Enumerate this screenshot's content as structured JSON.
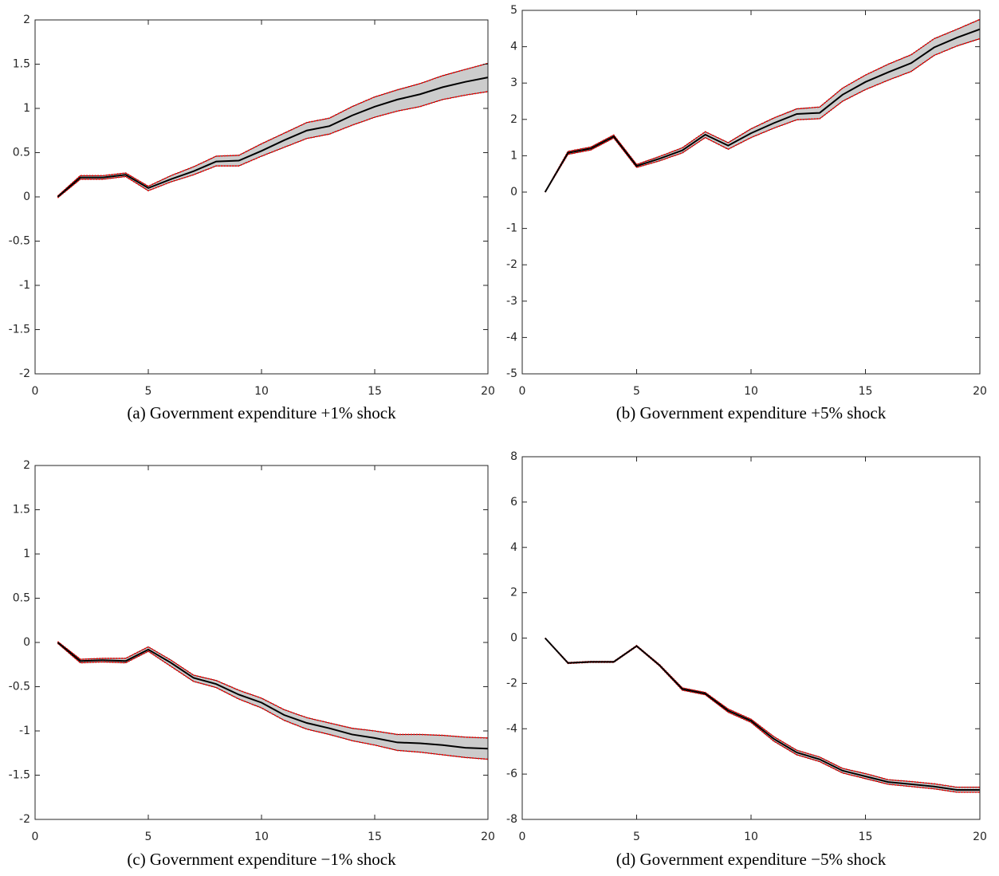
{
  "chart_data": [
    {
      "type": "line",
      "caption": "(a) Government expenditure +1% shock",
      "x": [
        1,
        2,
        3,
        4,
        5,
        6,
        7,
        8,
        9,
        10,
        11,
        12,
        13,
        14,
        15,
        16,
        17,
        18,
        19,
        20
      ],
      "values": [
        0,
        0.22,
        0.22,
        0.25,
        0.1,
        0.2,
        0.29,
        0.4,
        0.41,
        0.52,
        0.64,
        0.75,
        0.8,
        0.92,
        1.02,
        1.1,
        1.16,
        1.24,
        1.3,
        1.35
      ],
      "upper": [
        0.01,
        0.24,
        0.24,
        0.27,
        0.12,
        0.24,
        0.34,
        0.46,
        0.47,
        0.6,
        0.72,
        0.84,
        0.89,
        1.02,
        1.13,
        1.21,
        1.28,
        1.37,
        1.44,
        1.51
      ],
      "lower": [
        -0.01,
        0.2,
        0.2,
        0.23,
        0.07,
        0.17,
        0.25,
        0.35,
        0.35,
        0.46,
        0.56,
        0.66,
        0.71,
        0.81,
        0.9,
        0.97,
        1.02,
        1.1,
        1.15,
        1.19
      ],
      "color": "#000000",
      "band_color": "#ff0000",
      "fill_color": "#cccccc",
      "xlim": [
        0,
        20
      ],
      "xticks": [
        0,
        5,
        10,
        15,
        20
      ],
      "ylim": [
        -2,
        2
      ],
      "yticks": [
        -2,
        -1.5,
        -1,
        -0.5,
        0,
        0.5,
        1,
        1.5,
        2
      ]
    },
    {
      "type": "line",
      "caption": "(b) Government expenditure +5% shock",
      "x": [
        1,
        2,
        3,
        4,
        5,
        6,
        7,
        8,
        9,
        10,
        11,
        12,
        13,
        14,
        15,
        16,
        17,
        18,
        19,
        20
      ],
      "values": [
        0,
        1.08,
        1.2,
        1.53,
        0.72,
        0.92,
        1.15,
        1.58,
        1.28,
        1.62,
        1.9,
        2.15,
        2.18,
        2.68,
        3.03,
        3.3,
        3.55,
        3.98,
        4.25,
        4.48
      ],
      "upper": [
        0,
        1.12,
        1.24,
        1.57,
        0.76,
        0.98,
        1.22,
        1.66,
        1.36,
        1.74,
        2.04,
        2.29,
        2.34,
        2.86,
        3.22,
        3.52,
        3.78,
        4.22,
        4.48,
        4.75
      ],
      "lower": [
        0,
        1.04,
        1.16,
        1.49,
        0.68,
        0.86,
        1.08,
        1.5,
        1.18,
        1.5,
        1.76,
        1.99,
        2.02,
        2.5,
        2.82,
        3.08,
        3.32,
        3.76,
        4.02,
        4.22
      ],
      "color": "#000000",
      "band_color": "#ff0000",
      "fill_color": "#cccccc",
      "xlim": [
        0,
        20
      ],
      "xticks": [
        0,
        5,
        10,
        15,
        20
      ],
      "ylim": [
        -5,
        5
      ],
      "yticks": [
        -5,
        -4,
        -3,
        -2,
        -1,
        0,
        1,
        2,
        3,
        4,
        5
      ]
    },
    {
      "type": "line",
      "caption": "(c) Government expenditure −1% shock",
      "x": [
        1,
        2,
        3,
        4,
        5,
        6,
        7,
        8,
        9,
        10,
        11,
        12,
        13,
        14,
        15,
        16,
        17,
        18,
        19,
        20
      ],
      "values": [
        0,
        -0.21,
        -0.2,
        -0.21,
        -0.08,
        -0.23,
        -0.4,
        -0.47,
        -0.59,
        -0.68,
        -0.82,
        -0.91,
        -0.97,
        -1.04,
        -1.08,
        -1.13,
        -1.14,
        -1.16,
        -1.19,
        -1.2
      ],
      "upper": [
        0.01,
        -0.19,
        -0.18,
        -0.18,
        -0.05,
        -0.2,
        -0.37,
        -0.43,
        -0.54,
        -0.63,
        -0.76,
        -0.85,
        -0.91,
        -0.97,
        -1.0,
        -1.04,
        -1.04,
        -1.05,
        -1.07,
        -1.08
      ],
      "lower": [
        -0.01,
        -0.23,
        -0.22,
        -0.23,
        -0.1,
        -0.27,
        -0.44,
        -0.51,
        -0.64,
        -0.74,
        -0.88,
        -0.98,
        -1.04,
        -1.11,
        -1.16,
        -1.22,
        -1.24,
        -1.27,
        -1.3,
        -1.32
      ],
      "color": "#000000",
      "band_color": "#ff0000",
      "fill_color": "#cccccc",
      "xlim": [
        0,
        20
      ],
      "xticks": [
        0,
        5,
        10,
        15,
        20
      ],
      "ylim": [
        -2,
        2
      ],
      "yticks": [
        -2,
        -1.5,
        -1,
        -0.5,
        0,
        0.5,
        1,
        1.5,
        2
      ]
    },
    {
      "type": "line",
      "caption": "(d) Government expenditure −5% shock",
      "x": [
        1,
        2,
        3,
        4,
        5,
        6,
        7,
        8,
        9,
        10,
        11,
        12,
        13,
        14,
        15,
        16,
        17,
        18,
        19,
        20
      ],
      "values": [
        0,
        -1.1,
        -1.05,
        -1.05,
        -0.35,
        -1.2,
        -2.25,
        -2.45,
        -3.2,
        -3.65,
        -4.45,
        -5.05,
        -5.35,
        -5.85,
        -6.1,
        -6.35,
        -6.45,
        -6.55,
        -6.7,
        -6.7
      ],
      "upper": [
        0,
        -1.08,
        -1.03,
        -1.03,
        -0.33,
        -1.17,
        -2.2,
        -2.4,
        -3.13,
        -3.58,
        -4.35,
        -4.95,
        -5.25,
        -5.75,
        -5.98,
        -6.25,
        -6.33,
        -6.43,
        -6.58,
        -6.58
      ],
      "lower": [
        0,
        -1.12,
        -1.07,
        -1.07,
        -0.37,
        -1.23,
        -2.3,
        -2.5,
        -3.27,
        -3.72,
        -4.55,
        -5.15,
        -5.45,
        -5.95,
        -6.2,
        -6.45,
        -6.55,
        -6.65,
        -6.8,
        -6.8
      ],
      "color": "#000000",
      "band_color": "#ff0000",
      "fill_color": "#cccccc",
      "xlim": [
        0,
        20
      ],
      "xticks": [
        0,
        5,
        10,
        15,
        20
      ],
      "ylim": [
        -8,
        8
      ],
      "yticks": [
        -8,
        -6,
        -4,
        -2,
        0,
        2,
        4,
        6,
        8
      ]
    }
  ]
}
